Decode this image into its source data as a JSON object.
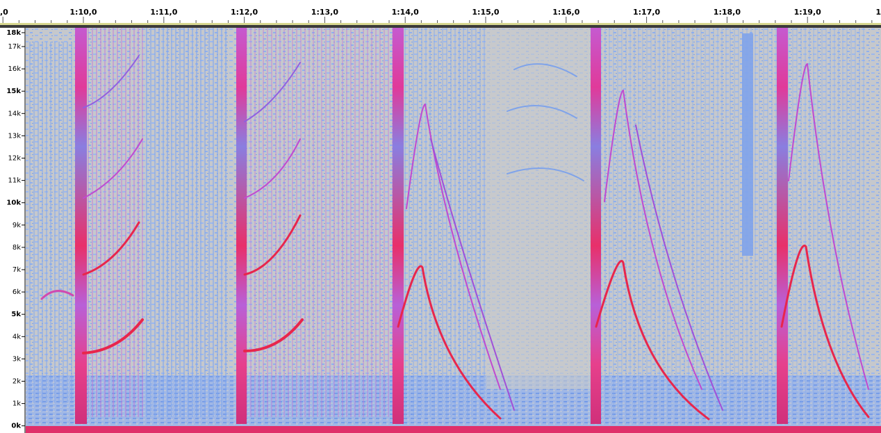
{
  "ruler": {
    "labels": [
      ",0",
      "1:10,0",
      "1:11,0",
      "1:12,0",
      "1:13,0",
      "1:14,0",
      "1:15,0",
      "1:16,0",
      "1:17,0",
      "1:18,0",
      "1:19,0",
      "1"
    ]
  },
  "frequency_axis": {
    "labels": [
      "18k",
      "17k",
      "16k",
      "15k",
      "14k",
      "13k",
      "12k",
      "11k",
      "10k",
      "9k",
      "8k",
      "7k",
      "6k",
      "5k",
      "4k",
      "3k",
      "2k",
      "1k",
      "0k"
    ]
  }
}
